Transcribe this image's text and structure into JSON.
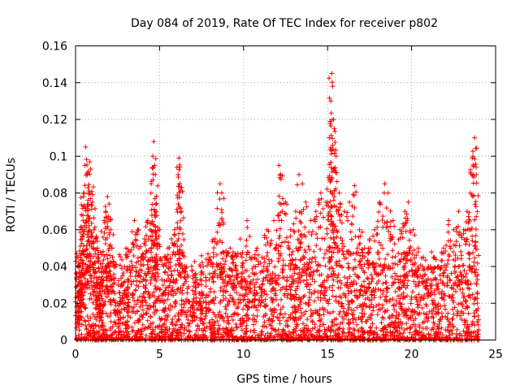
{
  "chart_data": {
    "type": "scatter",
    "title": "Day 084 of 2019, Rate Of TEC Index for receiver p802",
    "xlabel": "GPS time / hours",
    "ylabel": "ROTI / TECUs",
    "xlim": [
      0,
      25
    ],
    "ylim": [
      0,
      0.16
    ],
    "xticks": [
      0,
      5,
      10,
      15,
      20,
      25
    ],
    "yticks": [
      0,
      0.02,
      0.04,
      0.06,
      0.08,
      0.1,
      0.12,
      0.14,
      0.16
    ],
    "xtick_labels": [
      "0",
      "5",
      "10",
      "15",
      "20",
      "25"
    ],
    "ytick_labels": [
      "0",
      "0.02",
      "0.04",
      "0.06",
      "0.08",
      "0.1",
      "0.12",
      "0.14",
      "0.16"
    ],
    "grid": true,
    "marker": "+",
    "color": "#ff0000",
    "series": [
      {
        "name": "ROTI",
        "points": [
          [
            0.1,
            0.02
          ],
          [
            0.15,
            0.03
          ],
          [
            0.2,
            0.04
          ],
          [
            0.25,
            0.035
          ],
          [
            0.3,
            0.045
          ],
          [
            0.35,
            0.03
          ],
          [
            0.4,
            0.06
          ],
          [
            0.45,
            0.065
          ],
          [
            0.5,
            0.08
          ],
          [
            0.55,
            0.095
          ],
          [
            0.6,
            0.105
          ],
          [
            0.7,
            0.09
          ],
          [
            0.8,
            0.08
          ],
          [
            0.85,
            0.097
          ],
          [
            0.9,
            0.093
          ],
          [
            1.0,
            0.075
          ],
          [
            1.1,
            0.06
          ],
          [
            1.2,
            0.055
          ],
          [
            1.3,
            0.05
          ],
          [
            1.4,
            0.03
          ],
          [
            1.5,
            0.025
          ],
          [
            1.6,
            0.04
          ],
          [
            1.7,
            0.065
          ],
          [
            1.8,
            0.07
          ],
          [
            1.9,
            0.078
          ],
          [
            2.0,
            0.074
          ],
          [
            2.1,
            0.06
          ],
          [
            2.2,
            0.045
          ],
          [
            2.5,
            0.02
          ],
          [
            2.8,
            0.035
          ],
          [
            3.0,
            0.05
          ],
          [
            3.2,
            0.04
          ],
          [
            3.5,
            0.065
          ],
          [
            3.7,
            0.06
          ],
          [
            3.9,
            0.045
          ],
          [
            4.1,
            0.055
          ],
          [
            4.3,
            0.065
          ],
          [
            4.5,
            0.085
          ],
          [
            4.6,
            0.1
          ],
          [
            4.65,
            0.108
          ],
          [
            4.7,
            0.095
          ],
          [
            4.75,
            0.09
          ],
          [
            4.8,
            0.07
          ],
          [
            5.0,
            0.06
          ],
          [
            5.3,
            0.045
          ],
          [
            5.5,
            0.05
          ],
          [
            5.7,
            0.055
          ],
          [
            5.9,
            0.06
          ],
          [
            6.1,
            0.09
          ],
          [
            6.15,
            0.099
          ],
          [
            6.2,
            0.085
          ],
          [
            6.3,
            0.07
          ],
          [
            6.5,
            0.04
          ],
          [
            7.0,
            0.035
          ],
          [
            7.3,
            0.03
          ],
          [
            7.6,
            0.04
          ],
          [
            8.0,
            0.045
          ],
          [
            8.3,
            0.055
          ],
          [
            8.6,
            0.085
          ],
          [
            8.7,
            0.08
          ],
          [
            8.8,
            0.063
          ],
          [
            9.2,
            0.05
          ],
          [
            9.5,
            0.04
          ],
          [
            9.8,
            0.055
          ],
          [
            10.2,
            0.065
          ],
          [
            10.5,
            0.045
          ],
          [
            10.8,
            0.05
          ],
          [
            11.1,
            0.045
          ],
          [
            11.4,
            0.06
          ],
          [
            11.8,
            0.065
          ],
          [
            12.1,
            0.095
          ],
          [
            12.2,
            0.09
          ],
          [
            12.5,
            0.075
          ],
          [
            12.8,
            0.06
          ],
          [
            13.1,
            0.07
          ],
          [
            13.3,
            0.09
          ],
          [
            13.5,
            0.085
          ],
          [
            13.7,
            0.075
          ],
          [
            14.0,
            0.065
          ],
          [
            14.3,
            0.07
          ],
          [
            14.6,
            0.08
          ],
          [
            14.9,
            0.075
          ],
          [
            15.1,
            0.11
          ],
          [
            15.2,
            0.13
          ],
          [
            15.25,
            0.145
          ],
          [
            15.3,
            0.138
          ],
          [
            15.35,
            0.12
          ],
          [
            15.4,
            0.115
          ],
          [
            15.5,
            0.1
          ],
          [
            15.7,
            0.08
          ],
          [
            16.0,
            0.07
          ],
          [
            16.3,
            0.075
          ],
          [
            16.6,
            0.084
          ],
          [
            16.9,
            0.06
          ],
          [
            17.2,
            0.05
          ],
          [
            17.5,
            0.055
          ],
          [
            17.8,
            0.06
          ],
          [
            18.1,
            0.075
          ],
          [
            18.4,
            0.085
          ],
          [
            18.6,
            0.08
          ],
          [
            18.9,
            0.065
          ],
          [
            19.3,
            0.06
          ],
          [
            19.6,
            0.07
          ],
          [
            19.8,
            0.075
          ],
          [
            20.1,
            0.06
          ],
          [
            20.4,
            0.05
          ],
          [
            20.7,
            0.045
          ],
          [
            21.0,
            0.04
          ],
          [
            21.3,
            0.045
          ],
          [
            21.6,
            0.04
          ],
          [
            21.9,
            0.05
          ],
          [
            22.2,
            0.065
          ],
          [
            22.5,
            0.06
          ],
          [
            22.8,
            0.07
          ],
          [
            23.1,
            0.06
          ],
          [
            23.3,
            0.07
          ],
          [
            23.5,
            0.08
          ],
          [
            23.65,
            0.1
          ],
          [
            23.75,
            0.11
          ],
          [
            23.85,
            0.09
          ]
        ]
      }
    ],
    "dense_band": {
      "description": "Densely packed low-value points filling the lower part of the plot",
      "y_min": 0.0,
      "y_typical_max": 0.03
    }
  }
}
